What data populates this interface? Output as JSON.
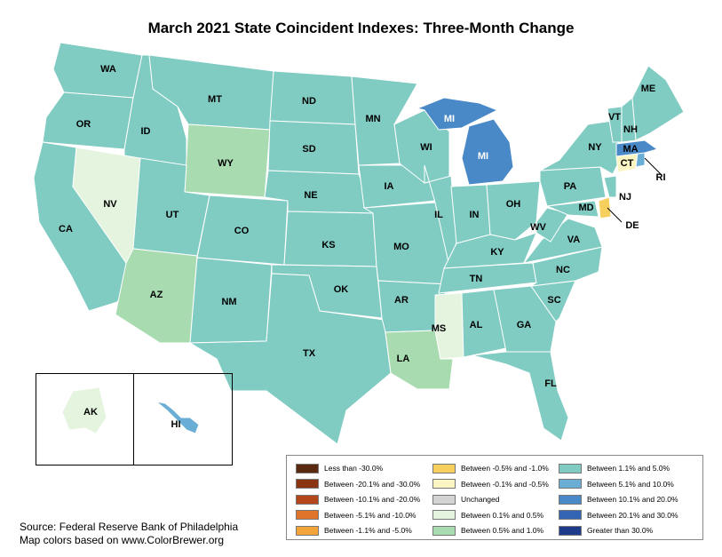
{
  "title": "March 2021 State Coincident Indexes: Three-Month Change",
  "colors": {
    "lt_neg30": "#5a2a10",
    "neg20_30": "#8b3412",
    "neg10_20": "#b4461a",
    "neg5_10": "#e0742a",
    "neg1_5": "#f4a53a",
    "neg05_1": "#f6cf5c",
    "neg01_05": "#fbf5c4",
    "unchanged": "#d3d3d3",
    "pos01_05": "#e4f4df",
    "pos05_1": "#a8dbb0",
    "pos1_5": "#80cbc2",
    "pos5_10": "#6aaed6",
    "pos10_20": "#4a89c7",
    "pos20_30": "#3465b5",
    "gt30": "#1e3a8a"
  },
  "state_categories": {
    "pos1_5": [
      "WA",
      "OR",
      "CA",
      "ID",
      "MT",
      "UT",
      "CO",
      "NM",
      "TX",
      "ND",
      "SD",
      "NE",
      "KS",
      "OK",
      "MN",
      "IA",
      "MO",
      "AR",
      "WI",
      "IL",
      "IN",
      "OH",
      "KY",
      "TN",
      "AL",
      "GA",
      "FL",
      "SC",
      "NC",
      "VA",
      "WV",
      "PA",
      "NY",
      "VT",
      "NH",
      "ME",
      "NJ",
      "MD"
    ],
    "pos01_05": [
      "NV",
      "MS",
      "AK"
    ],
    "pos05_1": [
      "WY",
      "AZ",
      "LA"
    ],
    "neg01_05": [
      "CT"
    ],
    "neg05_1": [
      "DE"
    ],
    "pos5_10": [
      "HI",
      "RI"
    ],
    "pos10_20": [
      "MI",
      "MA"
    ]
  },
  "state_labels": [
    "WA",
    "OR",
    "CA",
    "ID",
    "NV",
    "MT",
    "WY",
    "UT",
    "AZ",
    "CO",
    "NM",
    "TX",
    "ND",
    "SD",
    "NE",
    "KS",
    "OK",
    "MN",
    "IA",
    "MO",
    "AR",
    "LA",
    "WI",
    "MI",
    "MI",
    "IL",
    "IN",
    "OH",
    "KY",
    "TN",
    "MS",
    "AL",
    "GA",
    "FL",
    "SC",
    "NC",
    "VA",
    "WV",
    "MD",
    "DE",
    "PA",
    "NJ",
    "NY",
    "CT",
    "RI",
    "MA",
    "VT",
    "NH",
    "ME",
    "AK",
    "HI"
  ],
  "legend": [
    {
      "label": "Less than -30.0%",
      "color_key": "lt_neg30"
    },
    {
      "label": "Between -20.1% and -30.0%",
      "color_key": "neg20_30"
    },
    {
      "label": "Between -10.1% and -20.0%",
      "color_key": "neg10_20"
    },
    {
      "label": "Between -5.1% and -10.0%",
      "color_key": "neg5_10"
    },
    {
      "label": "Between -1.1% and -5.0%",
      "color_key": "neg1_5"
    },
    {
      "label": "Between -0.5% and -1.0%",
      "color_key": "neg05_1"
    },
    {
      "label": "Between -0.1% and -0.5%",
      "color_key": "neg01_05"
    },
    {
      "label": "Unchanged",
      "color_key": "unchanged"
    },
    {
      "label": "Between 0.1% and 0.5%",
      "color_key": "pos01_05"
    },
    {
      "label": "Between 0.5% and 1.0%",
      "color_key": "pos05_1"
    },
    {
      "label": "Between 1.1% and 5.0%",
      "color_key": "pos1_5"
    },
    {
      "label": "Between 5.1% and 10.0%",
      "color_key": "pos5_10"
    },
    {
      "label": "Between 10.1% and 20.0%",
      "color_key": "pos10_20"
    },
    {
      "label": "Between 20.1% and 30.0%",
      "color_key": "pos20_30"
    },
    {
      "label": "Greater than 30.0%",
      "color_key": "gt30"
    }
  ],
  "source": {
    "line1": "Source: Federal Reserve Bank of Philadelphia",
    "line2": "Map colors based on www.ColorBrewer.org"
  }
}
